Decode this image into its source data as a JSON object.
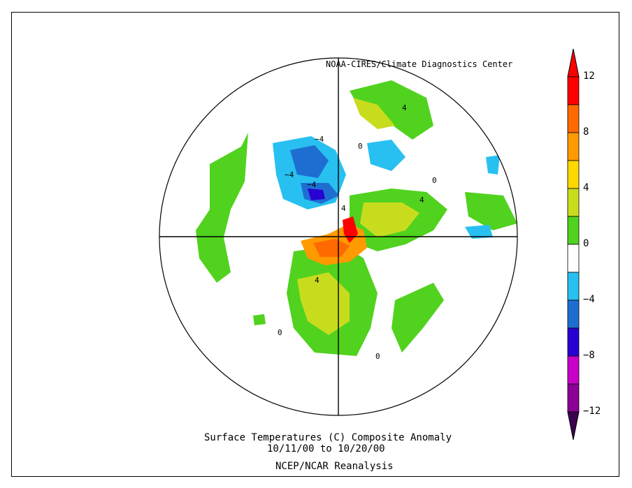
{
  "credit": "NOAA-CIRES/Climate Diagnostics Center",
  "title": {
    "line1": "Surface Temperatures (C)   Composite Anomaly",
    "line2": "10/11/00  to 10/20/00",
    "line3": "NCEP/NCAR Reanalysis"
  },
  "colorbar": {
    "labels": [
      {
        "value": "12"
      },
      {
        "value": "8"
      },
      {
        "value": "4"
      },
      {
        "value": "0"
      },
      {
        "value": "−4"
      },
      {
        "value": "−8"
      },
      {
        "value": "−12"
      }
    ],
    "colors": [
      "#ff0000",
      "#ff6a00",
      "#ff9a00",
      "#ffd800",
      "#c8dc1e",
      "#50d21e",
      "#ffffff",
      "#28c0f0",
      "#1e6ed2",
      "#2800d2",
      "#c800c8",
      "#8c0096"
    ],
    "top_arrow": "#ff0000",
    "bottom_arrow": "#3c0050"
  },
  "contour_labels": [
    {
      "text": "−4",
      "region": "greenland-sea"
    },
    {
      "text": "−4",
      "region": "siberia-west"
    },
    {
      "text": "−4",
      "region": "siberia-center"
    },
    {
      "text": "4",
      "region": "europe"
    },
    {
      "text": "4",
      "region": "central-asia"
    },
    {
      "text": "4",
      "region": "alaska"
    },
    {
      "text": "4",
      "region": "canada"
    },
    {
      "text": "0",
      "region": "kara-sea"
    },
    {
      "text": "0",
      "region": "north-pacific"
    },
    {
      "text": "0",
      "region": "usa"
    },
    {
      "text": "0",
      "region": "atlantic"
    }
  ]
}
